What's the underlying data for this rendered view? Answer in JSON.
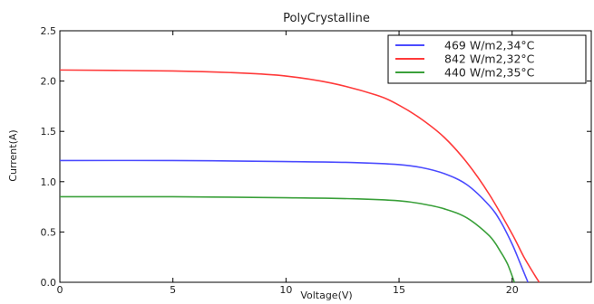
{
  "chart_data": {
    "type": "line",
    "title": "PolyCrystalline",
    "xlabel": "Voltage(V)",
    "ylabel": "Current(A)",
    "xlim": [
      0,
      23.5
    ],
    "ylim": [
      0,
      2.5
    ],
    "xticks": [
      0,
      5,
      10,
      15,
      20
    ],
    "yticks": [
      0.0,
      0.5,
      1.0,
      1.5,
      2.0,
      2.5
    ],
    "xtick_labels": [
      "0",
      "5",
      "10",
      "15",
      "20"
    ],
    "ytick_labels": [
      "0.0",
      "0.5",
      "1.0",
      "1.5",
      "2.0",
      "2.5"
    ],
    "grid": false,
    "legend_position": "top-right",
    "series": [
      {
        "name": "469 W/m2,34°C",
        "color": "#4b4bff",
        "x": [
          0,
          5,
          10,
          13,
          15,
          16,
          17,
          18,
          19,
          19.5,
          20,
          20.3,
          20.5,
          20.7
        ],
        "y": [
          1.21,
          1.21,
          1.2,
          1.19,
          1.17,
          1.14,
          1.08,
          0.97,
          0.76,
          0.6,
          0.38,
          0.22,
          0.11,
          0.0
        ]
      },
      {
        "name": "842 W/m2,32°C",
        "color": "#ff3a3a",
        "x": [
          0,
          5,
          8,
          10,
          12,
          14,
          15,
          16,
          17,
          18,
          19,
          20,
          20.5,
          21,
          21.2
        ],
        "y": [
          2.11,
          2.1,
          2.08,
          2.05,
          1.98,
          1.86,
          1.76,
          1.62,
          1.44,
          1.19,
          0.87,
          0.48,
          0.26,
          0.07,
          0.0
        ]
      },
      {
        "name": "440 W/m2,35°C",
        "color": "#3aa03a",
        "x": [
          0,
          5,
          10,
          13,
          15,
          16,
          17,
          18,
          19,
          19.5,
          19.8,
          20.1
        ],
        "y": [
          0.85,
          0.85,
          0.84,
          0.83,
          0.81,
          0.78,
          0.73,
          0.64,
          0.46,
          0.3,
          0.18,
          0.0
        ]
      }
    ]
  }
}
